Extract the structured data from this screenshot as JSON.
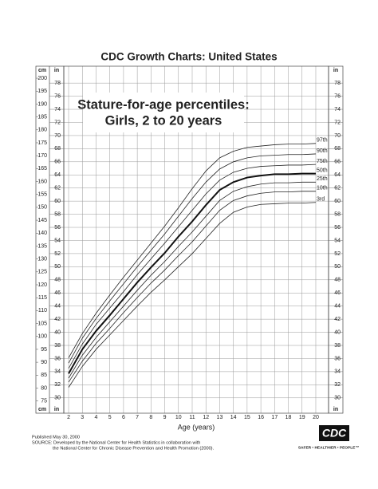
{
  "chart_data": {
    "type": "line",
    "title": "CDC Growth Charts: United States",
    "annotation": [
      "Stature-for-age percentiles:",
      "Girls, 2 to 20 years"
    ],
    "x_label": "Age (years)",
    "y_label": "in",
    "y2_label": "cm",
    "x": [
      2,
      3,
      4,
      5,
      6,
      7,
      8,
      9,
      10,
      11,
      12,
      13,
      14,
      15,
      16,
      17,
      18,
      19,
      20
    ],
    "xlim": [
      1.65,
      20.93
    ],
    "xticks": [
      2,
      3,
      4,
      5,
      6,
      7,
      8,
      9,
      10,
      11,
      12,
      13,
      14,
      15,
      16,
      17,
      18,
      19,
      20
    ],
    "ylim": [
      29,
      79.6
    ],
    "yticks": [
      30,
      32,
      34,
      36,
      38,
      40,
      42,
      44,
      46,
      48,
      50,
      52,
      54,
      56,
      58,
      60,
      62,
      64,
      66,
      68,
      70,
      72,
      74,
      76,
      78
    ],
    "y2lim": [
      73.66,
      202.18
    ],
    "y2ticks": [
      75,
      80,
      85,
      90,
      95,
      100,
      105,
      110,
      115,
      120,
      125,
      130,
      135,
      140,
      145,
      150,
      155,
      160,
      165,
      170,
      175,
      180,
      185,
      190,
      195,
      200
    ],
    "grid": true,
    "series": [
      {
        "name": "97th",
        "color": "#222222",
        "values": [
          36.1,
          39.8,
          42.9,
          45.7,
          48.4,
          51.0,
          53.6,
          56.2,
          59.0,
          61.9,
          64.6,
          66.6,
          67.6,
          68.2,
          68.4,
          68.6,
          68.7,
          68.7,
          68.8
        ]
      },
      {
        "name": "90th",
        "color": "#222222",
        "values": [
          35.3,
          39.1,
          42.1,
          44.8,
          47.4,
          50.0,
          52.5,
          55.0,
          57.7,
          60.4,
          62.9,
          64.9,
          66.0,
          66.6,
          66.9,
          67.0,
          67.1,
          67.1,
          67.2
        ]
      },
      {
        "name": "75th",
        "color": "#222222",
        "values": [
          34.5,
          38.2,
          41.2,
          43.7,
          46.2,
          48.8,
          51.2,
          53.6,
          56.1,
          58.6,
          61.1,
          63.2,
          64.4,
          65.0,
          65.3,
          65.4,
          65.5,
          65.5,
          65.6
        ]
      },
      {
        "name": "50th",
        "color": "#111111",
        "values": [
          33.7,
          37.4,
          40.2,
          42.6,
          45.1,
          47.6,
          49.9,
          52.1,
          54.6,
          56.9,
          59.4,
          61.7,
          62.9,
          63.6,
          63.9,
          64.1,
          64.1,
          64.2,
          64.2
        ]
      },
      {
        "name": "25th",
        "color": "#222222",
        "values": [
          33.0,
          36.5,
          39.2,
          41.6,
          44.0,
          46.4,
          48.7,
          50.8,
          53.1,
          55.3,
          57.7,
          60.1,
          61.5,
          62.2,
          62.6,
          62.8,
          62.8,
          62.9,
          62.9
        ]
      },
      {
        "name": "10th",
        "color": "#222222",
        "values": [
          32.4,
          35.6,
          38.3,
          40.6,
          43.0,
          45.3,
          47.5,
          49.5,
          51.7,
          53.8,
          56.2,
          58.6,
          60.1,
          60.8,
          61.2,
          61.4,
          61.4,
          61.5,
          61.5
        ]
      },
      {
        "name": "3rd",
        "color": "#222222",
        "values": [
          31.6,
          34.8,
          37.4,
          39.6,
          41.8,
          44.0,
          46.1,
          48.0,
          50.0,
          52.0,
          54.3,
          56.6,
          58.3,
          59.1,
          59.5,
          59.6,
          59.7,
          59.7,
          59.8
        ]
      }
    ]
  },
  "footer": [
    "Published May 30, 2000",
    "SOURCE: Developed by the National Center for Health Statistics in collaboration with",
    "the National Center for Chronic Disease Prevention and Health Promotion (2000)."
  ],
  "logo": {
    "name": "CDC",
    "tagline": "SAFER • HEALTHIER • PEOPLE™"
  }
}
